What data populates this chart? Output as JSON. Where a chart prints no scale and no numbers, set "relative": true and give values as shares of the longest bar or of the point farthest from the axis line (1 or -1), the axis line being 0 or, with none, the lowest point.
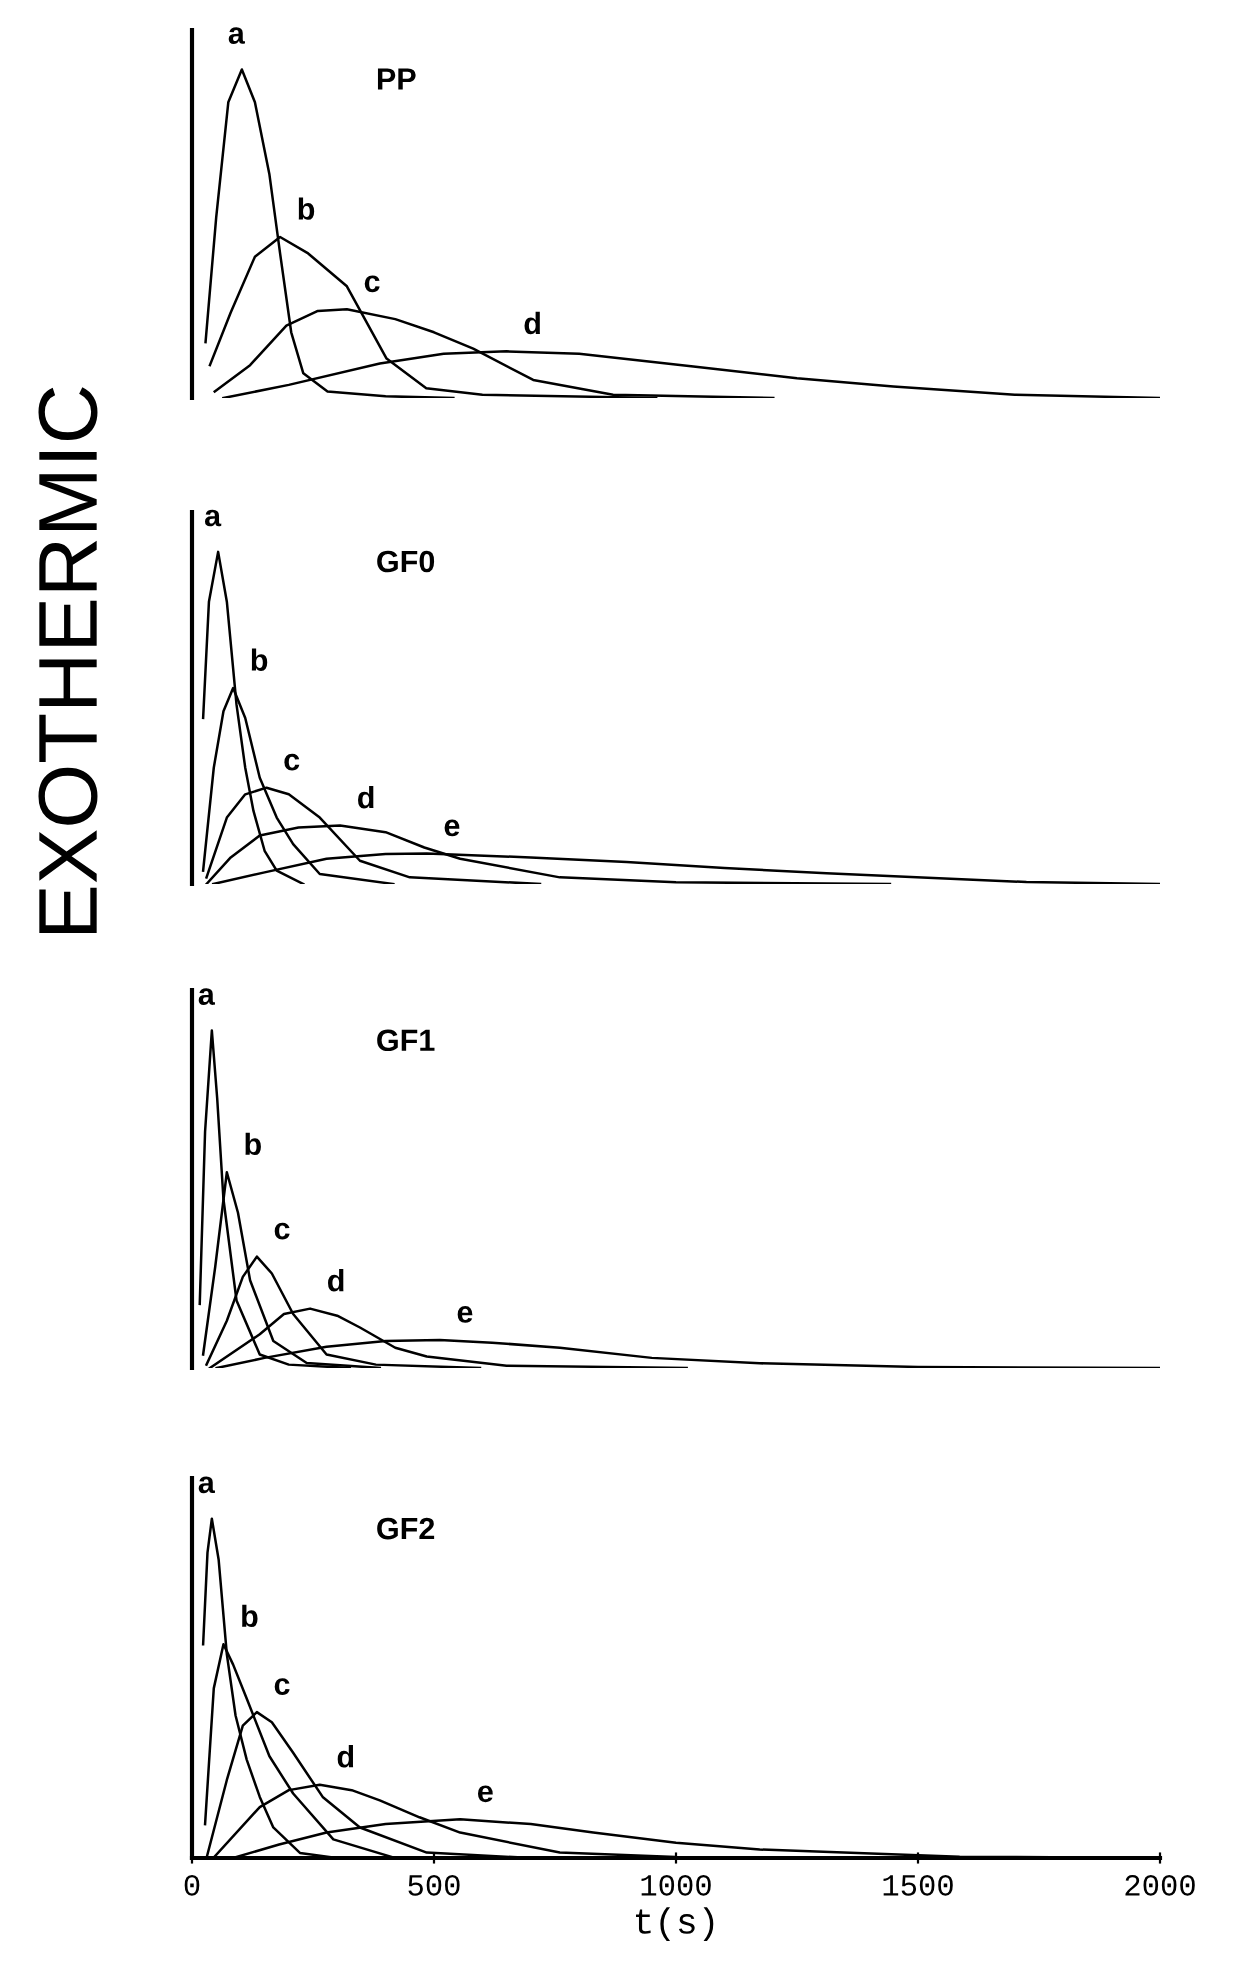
{
  "chart_data": [
    {
      "type": "line",
      "title": "PP",
      "ylabel": "EXOTHERMIC",
      "relative": true,
      "xlim": [
        0,
        2000
      ],
      "xticks": [
        0,
        500,
        1000,
        1500,
        2000
      ],
      "tick_labels": false,
      "series": [
        {
          "name": "a",
          "color": "#000000",
          "x": [
            28,
            50,
            75,
            103,
            130,
            160,
            182,
            205,
            230,
            280,
            400,
            540
          ],
          "values": [
            0.17,
            0.55,
            0.9,
            1.0,
            0.9,
            0.68,
            0.44,
            0.2,
            0.075,
            0.02,
            0.005,
            0
          ]
        },
        {
          "name": "b",
          "color": "#000000",
          "x": [
            37,
            80,
            130,
            182,
            240,
            320,
            402,
            484,
            600,
            959
          ],
          "values": [
            0.1,
            0.26,
            0.43,
            0.49,
            0.44,
            0.34,
            0.12,
            0.03,
            0.01,
            0
          ]
        },
        {
          "name": "c",
          "color": "#000000",
          "x": [
            47,
            120,
            195,
            260,
            320,
            420,
            500,
            581,
            705,
            870,
            1201
          ],
          "values": [
            0.02,
            0.1,
            0.22,
            0.265,
            0.27,
            0.24,
            0.2,
            0.15,
            0.055,
            0.01,
            0
          ]
        },
        {
          "name": "d",
          "color": "#000000",
          "x": [
            65,
            200,
            388,
            520,
            650,
            800,
            1036,
            1250,
            1449,
            1700,
            2000
          ],
          "values": [
            0,
            0.04,
            0.105,
            0.135,
            0.142,
            0.135,
            0.096,
            0.06,
            0.035,
            0.01,
            0
          ]
        }
      ]
    },
    {
      "type": "line",
      "title": "GF0",
      "relative": true,
      "xlim": [
        0,
        2000
      ],
      "xticks": [
        0,
        500,
        1000,
        1500,
        2000
      ],
      "tick_labels": false,
      "series": [
        {
          "name": "a",
          "color": "#000000",
          "x": [
            23,
            35,
            54,
            72,
            92,
            110,
            127,
            150,
            175,
            230
          ],
          "values": [
            0.5,
            0.85,
            1.0,
            0.85,
            0.54,
            0.35,
            0.22,
            0.1,
            0.04,
            0
          ]
        },
        {
          "name": "b",
          "color": "#000000",
          "x": [
            23,
            45,
            65,
            85,
            110,
            140,
            175,
            209,
            264,
            416
          ],
          "values": [
            0.04,
            0.35,
            0.52,
            0.59,
            0.5,
            0.32,
            0.2,
            0.12,
            0.03,
            0
          ]
        },
        {
          "name": "c",
          "color": "#000000",
          "x": [
            30,
            72,
            110,
            154,
            200,
            264,
            347,
            450,
            719
          ],
          "values": [
            0.02,
            0.2,
            0.27,
            0.29,
            0.27,
            0.2,
            0.07,
            0.02,
            0
          ]
        },
        {
          "name": "d",
          "color": "#000000",
          "x": [
            30,
            80,
            140,
            220,
            306,
            400,
            480,
            554,
            760,
            1000,
            1442
          ],
          "values": [
            0,
            0.08,
            0.146,
            0.17,
            0.176,
            0.156,
            0.11,
            0.076,
            0.02,
            0.005,
            0
          ]
        },
        {
          "name": "e",
          "color": "#000000",
          "x": [
            44,
            150,
            278,
            400,
            485,
            700,
            898,
            1100,
            1311,
            1724,
            2000
          ],
          "values": [
            0,
            0.035,
            0.076,
            0.09,
            0.092,
            0.08,
            0.066,
            0.048,
            0.032,
            0.006,
            0
          ]
        }
      ]
    },
    {
      "type": "line",
      "title": "GF1",
      "relative": true,
      "xlim": [
        0,
        2000
      ],
      "xticks": [
        0,
        500,
        1000,
        1500,
        2000
      ],
      "tick_labels": false,
      "series": [
        {
          "name": "a",
          "color": "#000000",
          "x": [
            16,
            27,
            41,
            52,
            65,
            92,
            140,
            200,
            326
          ],
          "values": [
            0.19,
            0.7,
            1.0,
            0.8,
            0.5,
            0.2,
            0.04,
            0.01,
            0
          ]
        },
        {
          "name": "b",
          "color": "#000000",
          "x": [
            23,
            48,
            72,
            95,
            120,
            168,
            237,
            388
          ],
          "values": [
            0.04,
            0.3,
            0.58,
            0.46,
            0.26,
            0.08,
            0.015,
            0
          ]
        },
        {
          "name": "c",
          "color": "#000000",
          "x": [
            30,
            72,
            105,
            134,
            165,
            209,
            278,
            380,
            595
          ],
          "values": [
            0.01,
            0.14,
            0.27,
            0.33,
            0.28,
            0.16,
            0.04,
            0.01,
            0
          ]
        },
        {
          "name": "d",
          "color": "#000000",
          "x": [
            37,
            140,
            190,
            244,
            300,
            347,
            420,
            485,
            650,
            1022
          ],
          "values": [
            0,
            0.1,
            0.16,
            0.176,
            0.155,
            0.12,
            0.06,
            0.034,
            0.007,
            0
          ]
        },
        {
          "name": "e",
          "color": "#000000",
          "x": [
            51,
            150,
            278,
            400,
            512,
            620,
            760,
            950,
            1173,
            1500,
            2000
          ],
          "values": [
            0,
            0.03,
            0.063,
            0.08,
            0.083,
            0.075,
            0.06,
            0.03,
            0.014,
            0.003,
            0
          ]
        }
      ]
    },
    {
      "type": "line",
      "title": "GF2",
      "xlabel": "t(s)",
      "relative": true,
      "xlim": [
        0,
        2000
      ],
      "xticks": [
        0,
        500,
        1000,
        1500,
        2000
      ],
      "tick_labels": "x",
      "series": [
        {
          "name": "a",
          "color": "#000000",
          "x": [
            23,
            32,
            41,
            55,
            72,
            90,
            113,
            140,
            168,
            223,
            300
          ],
          "values": [
            0.63,
            0.9,
            1.0,
            0.88,
            0.6,
            0.42,
            0.29,
            0.18,
            0.09,
            0.015,
            0
          ]
        },
        {
          "name": "b",
          "color": "#000000",
          "x": [
            27,
            45,
            65,
            85,
            113,
            160,
            209,
            292,
            420
          ],
          "values": [
            0.1,
            0.5,
            0.63,
            0.57,
            0.47,
            0.3,
            0.19,
            0.055,
            0
          ]
        },
        {
          "name": "c",
          "color": "#000000",
          "x": [
            30,
            72,
            105,
            134,
            165,
            209,
            270,
            347,
            485,
            700
          ],
          "values": [
            0,
            0.23,
            0.39,
            0.43,
            0.4,
            0.31,
            0.18,
            0.09,
            0.016,
            0
          ]
        },
        {
          "name": "d",
          "color": "#000000",
          "x": [
            44,
            140,
            200,
            264,
            330,
            388,
            470,
            554,
            760,
            1000,
            1311
          ],
          "values": [
            0,
            0.15,
            0.2,
            0.216,
            0.2,
            0.17,
            0.12,
            0.075,
            0.016,
            0.003,
            0
          ]
        },
        {
          "name": "e",
          "color": "#000000",
          "x": [
            85,
            180,
            278,
            400,
            554,
            700,
            829,
            1000,
            1173,
            1586,
            2000
          ],
          "values": [
            0,
            0.04,
            0.075,
            0.1,
            0.114,
            0.1,
            0.075,
            0.045,
            0.025,
            0.004,
            0
          ]
        }
      ]
    }
  ]
}
